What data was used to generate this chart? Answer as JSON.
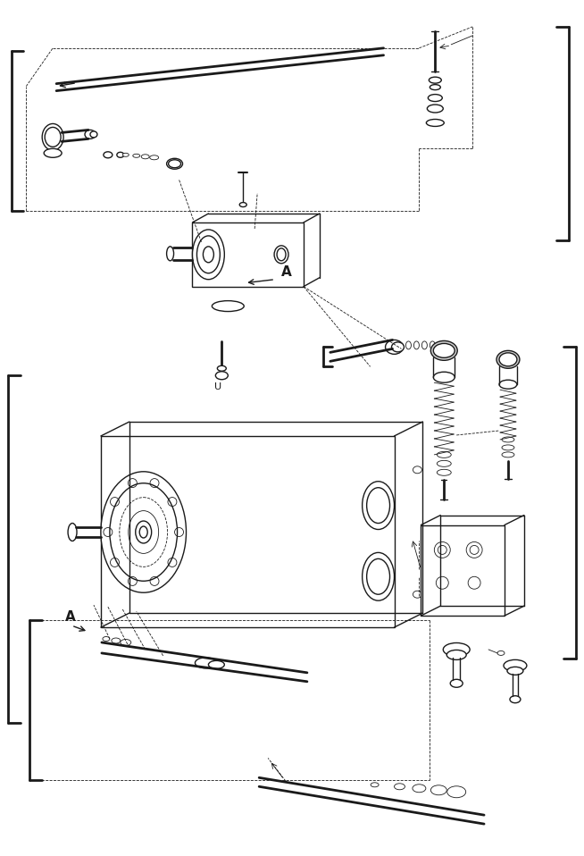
{
  "bg_color": "#ffffff",
  "line_color": "#1a1a1a",
  "figsize": [
    6.54,
    9.58
  ],
  "dpi": 100,
  "label_A": "A",
  "label_U": "U"
}
